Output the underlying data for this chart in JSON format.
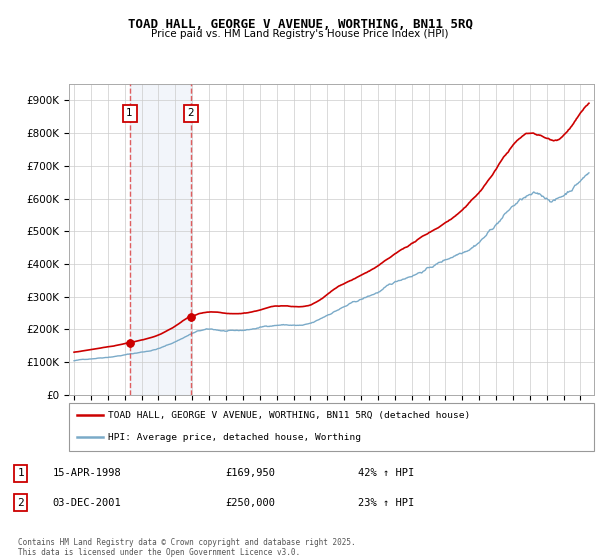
{
  "title": "TOAD HALL, GEORGE V AVENUE, WORTHING, BN11 5RQ",
  "subtitle": "Price paid vs. HM Land Registry's House Price Index (HPI)",
  "ylabel_ticks": [
    "£0",
    "£100K",
    "£200K",
    "£300K",
    "£400K",
    "£500K",
    "£600K",
    "£700K",
    "£800K",
    "£900K"
  ],
  "ytick_values": [
    0,
    100000,
    200000,
    300000,
    400000,
    500000,
    600000,
    700000,
    800000,
    900000
  ],
  "ylim": [
    0,
    950000
  ],
  "xlim_left": 1994.7,
  "xlim_right": 2025.8,
  "red_line_color": "#cc0000",
  "blue_line_color": "#7aaac8",
  "vline_color": "#dd4444",
  "marker1_x": 1998.29,
  "marker1_y": 169950,
  "marker2_x": 2001.92,
  "marker2_y": 250000,
  "shade_xmin": 1998.29,
  "shade_xmax": 2001.92,
  "legend_line1": "TOAD HALL, GEORGE V AVENUE, WORTHING, BN11 5RQ (detached house)",
  "legend_line2": "HPI: Average price, detached house, Worthing",
  "table_row1": [
    "1",
    "15-APR-1998",
    "£169,950",
    "42% ↑ HPI"
  ],
  "table_row2": [
    "2",
    "03-DEC-2001",
    "£250,000",
    "23% ↑ HPI"
  ],
  "footnote": "Contains HM Land Registry data © Crown copyright and database right 2025.\nThis data is licensed under the Open Government Licence v3.0.",
  "background_color": "#ffffff",
  "grid_color": "#cccccc"
}
